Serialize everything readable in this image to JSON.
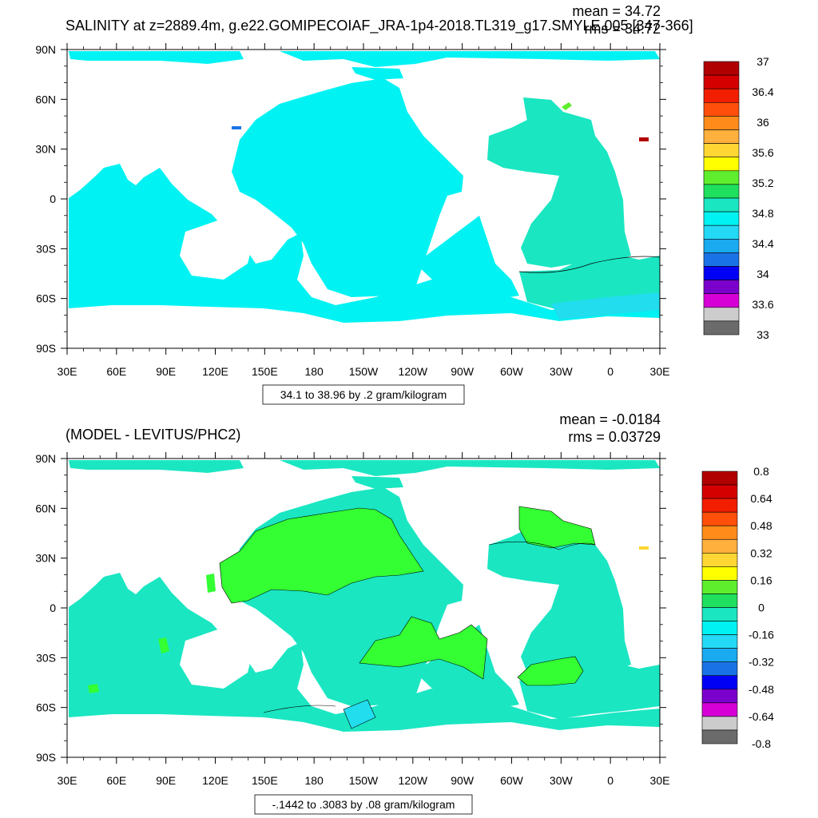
{
  "colors": {
    "ocean_base": "#00f2f2",
    "ocean_diff": "#1ae6c2",
    "land": "#ffffff",
    "green": "#33ff33",
    "bright_green": "#5eee2e",
    "aqua_green": "#3ce6c0",
    "light_blue": "#22ddee",
    "dark_red": "#b30000"
  },
  "axes": {
    "lat_labels": [
      "90N",
      "60N",
      "30N",
      "0",
      "30S",
      "60S",
      "90S"
    ],
    "lon_labels": [
      "30E",
      "60E",
      "90E",
      "120E",
      "150E",
      "180",
      "150W",
      "120W",
      "90W",
      "60W",
      "30W",
      "0",
      "30E"
    ]
  },
  "panels": [
    {
      "title": "SALINITY at z=2889.4m, g.e22.GOMIPECOIAF_JRA-1p4-2018.TL319_g17.SMYLE.005 [347-366]",
      "stat_mean": "mean = 34.72",
      "stat_rms": "rms = 34.72",
      "range_text": "34.1 to 38.96 by .2 gram/kilogram",
      "legend": {
        "colors": [
          "#b10000",
          "#d40000",
          "#f21e00",
          "#ff4f0a",
          "#ff8c1a",
          "#ffb03d",
          "#ffd633",
          "#ffff00",
          "#5eee2e",
          "#1fe05e",
          "#1ae6c2",
          "#00f2f2",
          "#24d9f5",
          "#19aaf0",
          "#1a73e6",
          "#0000f5",
          "#7a00cc",
          "#d600d6",
          "#cccccc",
          "#6b6b6b"
        ],
        "labels": [
          "37",
          "36.4",
          "36",
          "35.6",
          "35.2",
          "34.8",
          "34.4",
          "34",
          "33.6",
          "33"
        ]
      }
    },
    {
      "title": "(MODEL - LEVITUS/PHC2)",
      "stat_mean": "mean = -0.0184",
      "stat_rms": "rms = 0.03729",
      "range_text": "-.1442 to .3083 by .08 gram/kilogram",
      "legend": {
        "colors": [
          "#b10000",
          "#d40000",
          "#f21e00",
          "#ff4f0a",
          "#ff8c1a",
          "#ffb03d",
          "#ffd633",
          "#ffff00",
          "#5eee2e",
          "#1fe05e",
          "#1ae6c2",
          "#00f2f2",
          "#24d9f5",
          "#19aaf0",
          "#1a73e6",
          "#0000f5",
          "#7a00cc",
          "#d600d6",
          "#cccccc",
          "#6b6b6b"
        ],
        "labels": [
          "0.8",
          "0.64",
          "0.48",
          "0.32",
          "0.16",
          "0",
          "-0.16",
          "-0.32",
          "-0.48",
          "-0.64",
          "-0.8"
        ]
      }
    }
  ]
}
